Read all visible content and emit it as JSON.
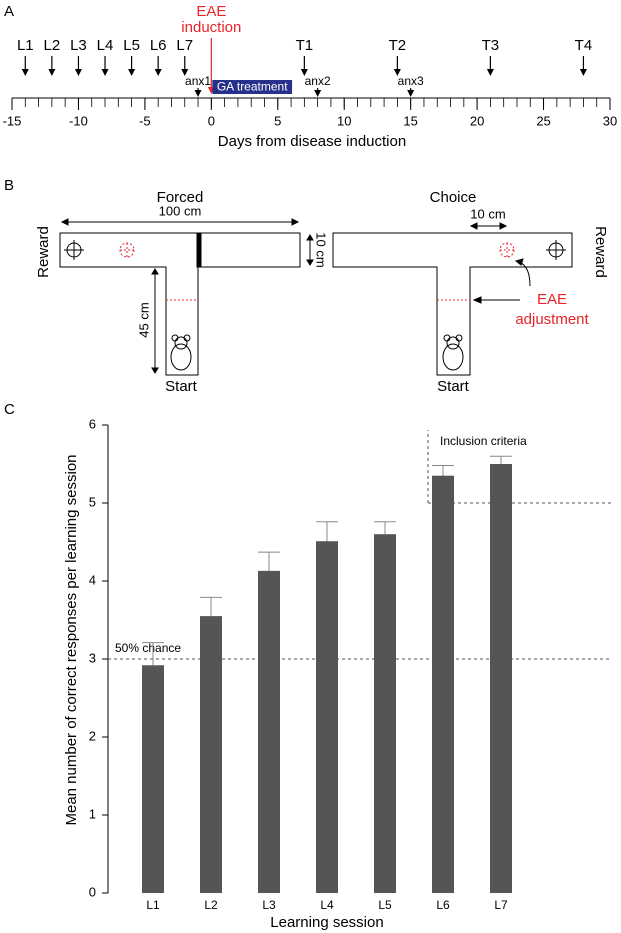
{
  "panel_a": {
    "label": "A",
    "xlim": [
      -15,
      30
    ],
    "xticks": [
      -15,
      -10,
      -5,
      0,
      5,
      10,
      15,
      20,
      25,
      30
    ],
    "minor_tick_step": 1,
    "xlabel": "Days from disease induction",
    "learning": {
      "labels": [
        "L1",
        "L2",
        "L3",
        "L4",
        "L5",
        "L6",
        "L7"
      ],
      "days": [
        -14,
        -12,
        -10,
        -8,
        -6,
        -4,
        -2
      ]
    },
    "tests": {
      "labels": [
        "T1",
        "T2",
        "T3",
        "T4"
      ],
      "days": [
        7,
        14,
        21,
        28
      ]
    },
    "anxiety": {
      "labels": [
        "anx1",
        "anx2",
        "anx3"
      ],
      "days": [
        -1,
        8,
        15
      ]
    },
    "induction": {
      "label_lines": [
        "EAE",
        "induction"
      ],
      "day": 0,
      "color": "#e8232a"
    },
    "treatment": {
      "label": "GA treatment",
      "days": [
        0,
        6
      ],
      "color": "#27318b"
    }
  },
  "panel_b": {
    "label": "B",
    "forced": {
      "title": "Forced",
      "width_label": "100 cm",
      "arm_label": "10 cm",
      "stem_label": "45 cm",
      "reward": "Reward",
      "start": "Start"
    },
    "choice": {
      "title": "Choice",
      "shift_label": "10 cm",
      "reward": "Reward",
      "start": "Start",
      "adjustment_lines": [
        "EAE",
        "adjustment"
      ]
    }
  },
  "chart_data": {
    "type": "bar",
    "panel_label": "C",
    "ylabel": "Mean number of correct responses per learning session",
    "xlabel": "Learning session",
    "categories": [
      "L1",
      "L2",
      "L3",
      "L4",
      "L5",
      "L6",
      "L7"
    ],
    "values": [
      2.92,
      3.55,
      4.13,
      4.51,
      4.6,
      5.35,
      5.5
    ],
    "errors": [
      0.29,
      0.24,
      0.24,
      0.25,
      0.16,
      0.13,
      0.1
    ],
    "color": "#555555",
    "ylim": [
      0,
      6
    ],
    "yticks": [
      0,
      1,
      2,
      3,
      4,
      5,
      6
    ],
    "reference_lines": [
      {
        "value": 3,
        "label": "50% chance"
      },
      {
        "value": 5,
        "label": "Inclusion criteria"
      }
    ]
  }
}
